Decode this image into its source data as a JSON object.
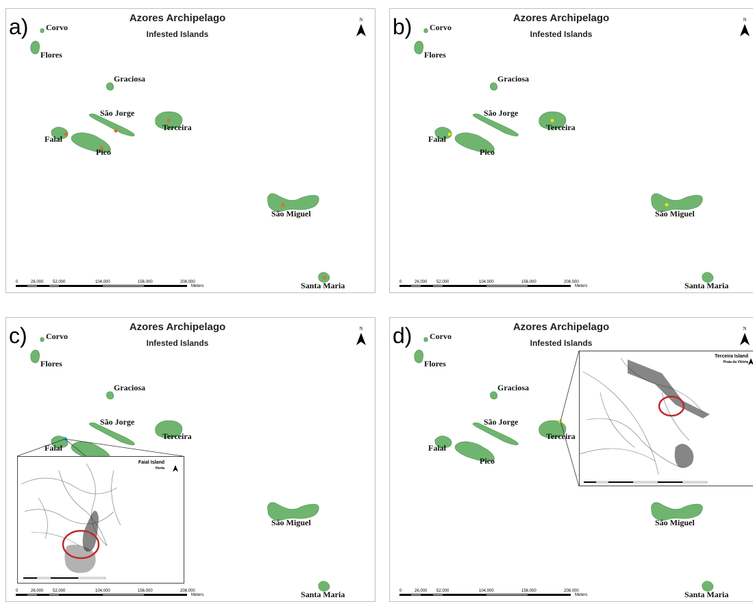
{
  "map_title": "Azores Archipelago",
  "map_subtitle": "Infested Islands",
  "north_label": "N",
  "islands": {
    "corvo": "Corvo",
    "flores": "Flores",
    "graciosa": "Graciosa",
    "sao_jorge": "São Jorge",
    "terceira": "Terceira",
    "faial": "Faial",
    "pico": "Pico",
    "sao_miguel": "São Miguel",
    "santa_maria": "Santa Maria"
  },
  "scale": {
    "ticks": [
      "0",
      "26.000",
      "52.000",
      "104.000",
      "156.000",
      "208.000"
    ],
    "unit": "Meters"
  },
  "panels": [
    {
      "label": "a)",
      "marker_color": "#e0702a",
      "infested": [
        "Faial",
        "Pico",
        "São Jorge",
        "Terceira",
        "São Miguel",
        "Santa Maria"
      ]
    },
    {
      "label": "b)",
      "marker_color": "#f2e600",
      "infested": [
        "Faial",
        "Terceira",
        "São Miguel"
      ]
    },
    {
      "label": "c)",
      "marker_color": "#35a7c9",
      "infested": [
        "Faial"
      ]
    },
    {
      "label": "d)",
      "marker_color": "#d8ea3a",
      "infested": [
        "Terceira"
      ]
    }
  ],
  "insets": {
    "faial": {
      "title": "Faial Island",
      "subtitle": "Horta"
    },
    "terceira": {
      "title": "Terceira Island",
      "subtitle": "Praia da Vitória"
    }
  },
  "colors": {
    "island_fill": "#6fb56f",
    "island_stroke": "#4f9050",
    "highlight_circle": "#c0282e",
    "panel_border": "#bfbfbf"
  }
}
